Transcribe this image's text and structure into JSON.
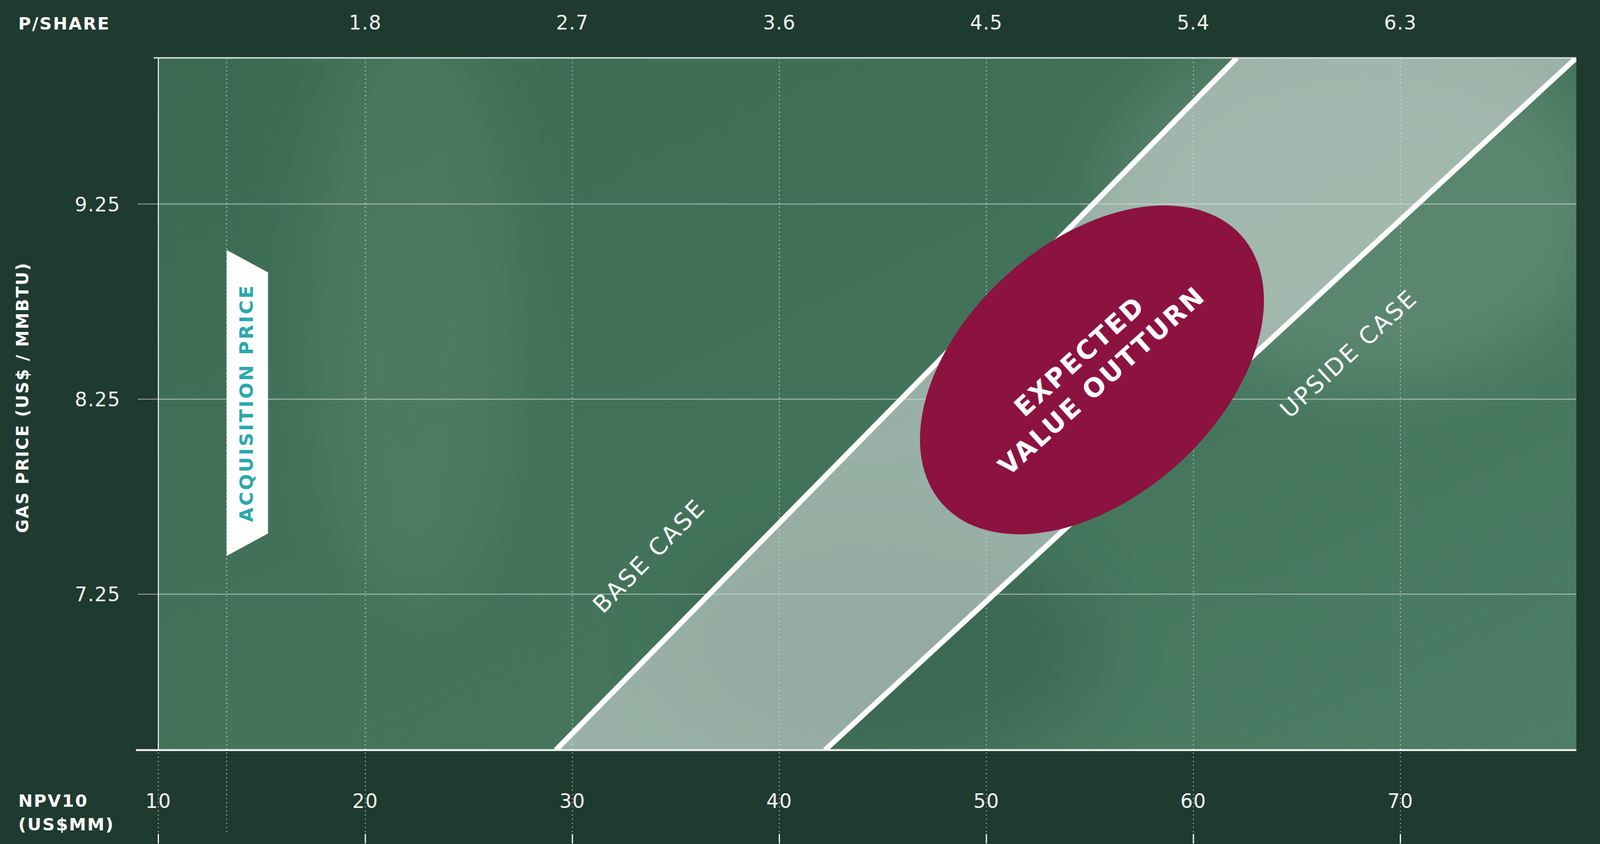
{
  "chart_data": {
    "type": "line",
    "x_label": "NPV10 (US$MM)",
    "x2_label": "P/SHARE",
    "y_label": "GAS PRICE (US$ / MMBTU)",
    "xlim": [
      10,
      78.5
    ],
    "xticks": [
      10,
      20,
      30,
      40,
      50,
      60,
      70
    ],
    "x2lim": [
      0.9,
      7.065
    ],
    "x2ticks": [
      1.8,
      2.7,
      3.6,
      4.5,
      5.4,
      6.3
    ],
    "ylim": [
      6.45,
      10.0
    ],
    "yticks": [
      7.25,
      8.25,
      9.25
    ],
    "grid": true,
    "series": [
      {
        "name": "BASE CASE",
        "color": "#ffffff",
        "x": [
          29.2,
          62.1
        ],
        "values": [
          6.45,
          10.0
        ]
      },
      {
        "name": "UPSIDE CASE",
        "color": "#ffffff",
        "x": [
          42.2,
          78.5
        ],
        "values": [
          6.45,
          10.0
        ]
      }
    ],
    "annotations": [
      {
        "text": "ACQUISITION PRICE",
        "x": 13.3,
        "y": 8.23,
        "color": "#2ba8ad"
      },
      {
        "lines": [
          "EXPECTED",
          "VALUE OUTTURN"
        ],
        "x": 55.1,
        "y": 8.4,
        "color": "#8c1240"
      }
    ]
  }
}
